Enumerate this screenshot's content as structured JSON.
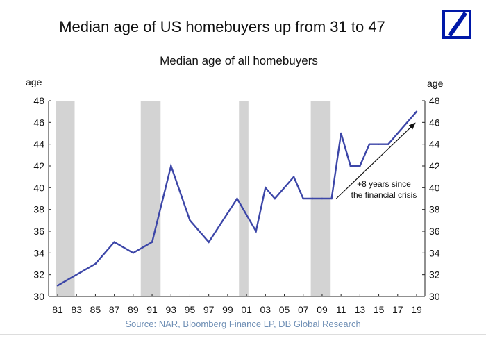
{
  "header": {
    "title": "Median age of US homebuyers up from 31 to 47",
    "logo": "deutsche-bank-logo"
  },
  "footer": {
    "source": "Source: NAR, Bloomberg Finance LP, DB Global Research"
  },
  "chart_data": {
    "type": "line",
    "title": "Median age of all homebuyers",
    "ylabel_left": "age",
    "ylabel_right": "age",
    "xlabel": "",
    "ylim": [
      30,
      48
    ],
    "yticks": [
      30,
      32,
      34,
      36,
      38,
      40,
      42,
      44,
      46,
      48
    ],
    "xlim": [
      1981,
      2019
    ],
    "xticks": [
      {
        "year": 1981,
        "label": "81"
      },
      {
        "year": 1983,
        "label": "83"
      },
      {
        "year": 1985,
        "label": "85"
      },
      {
        "year": 1987,
        "label": "87"
      },
      {
        "year": 1989,
        "label": "89"
      },
      {
        "year": 1991,
        "label": "91"
      },
      {
        "year": 1993,
        "label": "93"
      },
      {
        "year": 1995,
        "label": "95"
      },
      {
        "year": 1997,
        "label": "97"
      },
      {
        "year": 1999,
        "label": "99"
      },
      {
        "year": 2001,
        "label": "01"
      },
      {
        "year": 2003,
        "label": "03"
      },
      {
        "year": 2005,
        "label": "05"
      },
      {
        "year": 2007,
        "label": "07"
      },
      {
        "year": 2009,
        "label": "09"
      },
      {
        "year": 2011,
        "label": "11"
      },
      {
        "year": 2013,
        "label": "13"
      },
      {
        "year": 2015,
        "label": "15"
      },
      {
        "year": 2017,
        "label": "17"
      },
      {
        "year": 2019,
        "label": "19"
      }
    ],
    "series": [
      {
        "name": "Median age of all homebuyers",
        "color": "#3c46a8",
        "x": [
          1981,
          1985,
          1987,
          1989,
          1991,
          1993,
          1995,
          1997,
          2000,
          2002,
          2003,
          2004,
          2006,
          2007,
          2008,
          2009,
          2010,
          2011,
          2012,
          2013,
          2014,
          2015,
          2016,
          2019
        ],
        "y": [
          31,
          33,
          35,
          34,
          35,
          42,
          37,
          35,
          39,
          36,
          40,
          39,
          41,
          39,
          39,
          39,
          39,
          45,
          42,
          42,
          44,
          44,
          44,
          47
        ]
      }
    ],
    "recessions": [
      {
        "start": 1980.8,
        "end": 1982.8
      },
      {
        "start": 1989.8,
        "end": 1991.9
      },
      {
        "start": 2000.2,
        "end": 2001.2
      },
      {
        "start": 2007.8,
        "end": 2009.9
      }
    ],
    "recession_color": "#d3d3d3",
    "annotation": {
      "lines": [
        "+8 years since",
        "the financial crisis"
      ],
      "arrow_from": {
        "year": 2010.5,
        "value": 39
      },
      "arrow_to": {
        "year": 2018.8,
        "value": 45.9
      }
    }
  }
}
